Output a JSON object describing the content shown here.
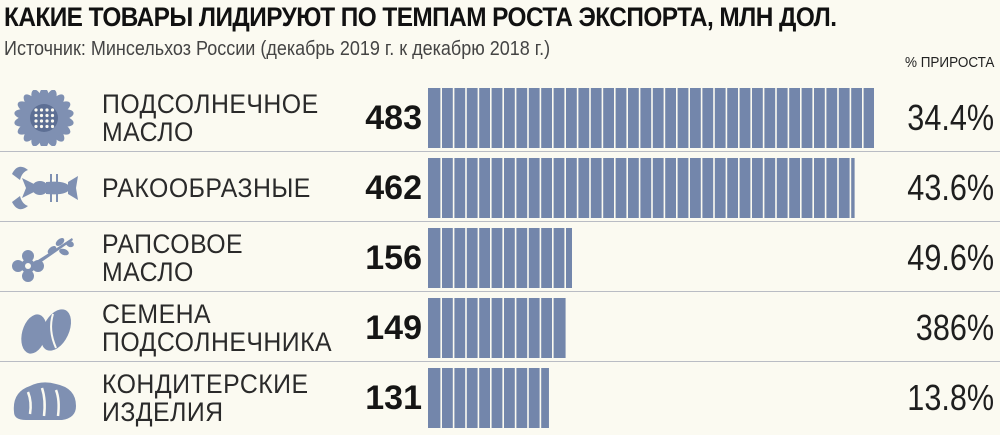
{
  "colors": {
    "bar": "#7386ab",
    "bar_separator": "#fbfaf1",
    "icon": "#7f90b2"
  },
  "chart_data": {
    "type": "bar",
    "orientation": "horizontal",
    "title": "КАКИЕ ТОВАРЫ ЛИДИРУЮТ ПО ТЕМПАМ РОСТА ЭКСПОРТА, МЛН ДОЛ.",
    "subtitle": "Источник: Минсельхоз России (декабрь 2019 г. к декабрю 2018 г.)",
    "growth_header": "% ПРИРОСТА",
    "xlim": [
      0,
      483
    ],
    "categories": [
      {
        "label_lines": [
          "ПОДСОЛНЕЧНОЕ",
          "МАСЛО"
        ],
        "icon": "sunflower-icon"
      },
      {
        "label_lines": [
          "РАКООБРАЗНЫЕ"
        ],
        "icon": "crayfish-icon"
      },
      {
        "label_lines": [
          "РАПСОВОЕ",
          "МАСЛО"
        ],
        "icon": "rapeseed-flower-icon"
      },
      {
        "label_lines": [
          "СЕМЕНА",
          "ПОДСОЛНЕЧНИКА"
        ],
        "icon": "seeds-icon"
      },
      {
        "label_lines": [
          "КОНДИТЕРСКИЕ",
          "ИЗДЕЛИЯ"
        ],
        "icon": "bread-icon"
      }
    ],
    "values": [
      483,
      462,
      156,
      149,
      131
    ],
    "value_labels": [
      "483",
      "462",
      "156",
      "149",
      "131"
    ],
    "growth_labels": [
      "34.4%",
      "43.6%",
      "49.6%",
      "386%",
      "13.8%"
    ]
  }
}
